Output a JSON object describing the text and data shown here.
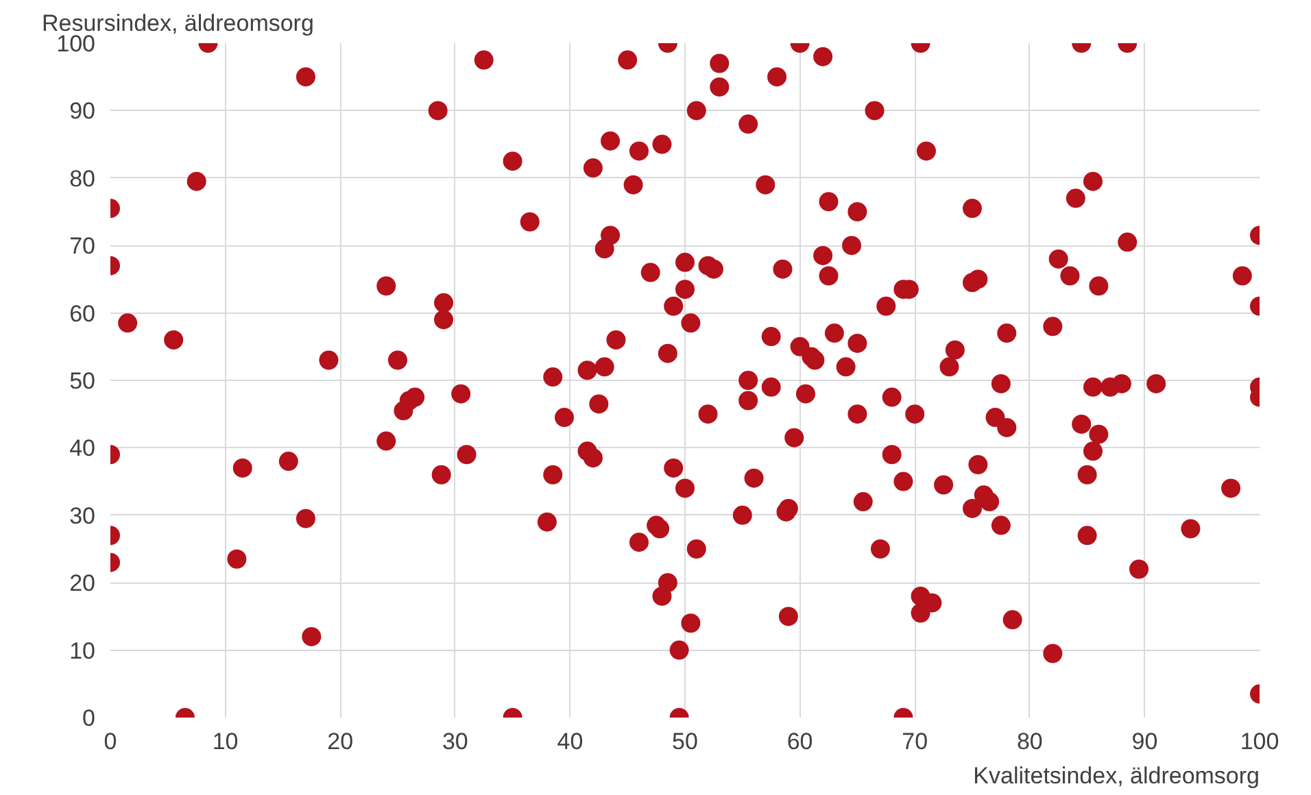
{
  "chart_data": {
    "type": "scatter",
    "xlabel": "Kvalitetsindex, äldreomsorg",
    "ylabel": "Resursindex, äldreomsorg",
    "xlim": [
      0,
      100
    ],
    "ylim": [
      0,
      100
    ],
    "xticks": [
      0,
      10,
      20,
      30,
      40,
      50,
      60,
      70,
      80,
      90,
      100
    ],
    "yticks": [
      0,
      10,
      20,
      30,
      40,
      50,
      60,
      70,
      80,
      90,
      100
    ],
    "grid": true,
    "marker": "circle",
    "series": [
      {
        "color": "#b5121b",
        "x": [
          0,
          0,
          0,
          0,
          0,
          1.5,
          5.5,
          6.5,
          7.5,
          8.5,
          11.5,
          11,
          15.5,
          17,
          17,
          17.5,
          19,
          24,
          24,
          25,
          25.5,
          26,
          26.5,
          28.5,
          29,
          29,
          28.8,
          30.5,
          31,
          32.5,
          35,
          35,
          36.5,
          38,
          38.5,
          38.5,
          39.5,
          41.5,
          41.5,
          42,
          42,
          42.5,
          43,
          43,
          43.5,
          43.5,
          44,
          45,
          45.5,
          46,
          46,
          47,
          47.5,
          47.8,
          48,
          48,
          48.5,
          48.5,
          48.5,
          49,
          49,
          49.5,
          49.5,
          50,
          50,
          50,
          50.5,
          50.5,
          51,
          51,
          52,
          52,
          52.5,
          53,
          53,
          55,
          55.5,
          55.5,
          55.5,
          56,
          57,
          57.5,
          57.5,
          58,
          58.5,
          59,
          58.8,
          59,
          59.5,
          60,
          60,
          60.5,
          61,
          61.3,
          62,
          62,
          62.5,
          62.5,
          63,
          64,
          64.5,
          65,
          65,
          65,
          65.5,
          66.5,
          67,
          67.5,
          68,
          68,
          69,
          69,
          69,
          69.5,
          70,
          70.5,
          70.5,
          70.5,
          71,
          71.5,
          72.5,
          73,
          73.5,
          75,
          75,
          75,
          75.5,
          75.5,
          76,
          76.5,
          77,
          77.5,
          77.5,
          78,
          78,
          78.5,
          82,
          82,
          82.5,
          83.5,
          84,
          84.5,
          84.5,
          85,
          85,
          85.5,
          85.5,
          85.5,
          86,
          86,
          87,
          88,
          88.5,
          88.5,
          89.5,
          91,
          94,
          97.5,
          98.5,
          100,
          100,
          100,
          100,
          100
        ],
        "values": [
          75.5,
          67,
          39,
          27,
          23,
          58.5,
          56,
          0,
          79.5,
          100,
          37,
          23.5,
          38,
          95,
          29.5,
          12,
          53,
          64,
          41,
          53,
          45.5,
          47,
          47.5,
          90,
          61.5,
          59,
          36,
          48,
          39,
          97.5,
          82.5,
          0,
          73.5,
          29,
          50.5,
          36,
          44.5,
          51.5,
          39.5,
          38.5,
          81.5,
          46.5,
          69.5,
          52,
          71.5,
          85.5,
          56,
          97.5,
          79,
          84,
          26,
          66,
          28.5,
          28,
          18,
          85,
          100,
          20,
          54,
          61,
          37,
          10,
          0,
          34,
          63.5,
          67.5,
          58.5,
          14,
          90,
          25,
          45,
          67,
          66.5,
          97,
          93.5,
          30,
          88,
          50,
          47,
          35.5,
          79,
          49,
          56.5,
          95,
          66.5,
          31,
          30.5,
          15,
          41.5,
          100,
          55,
          48,
          53.5,
          53,
          98,
          68.5,
          76.5,
          65.5,
          57,
          52,
          70,
          75,
          45,
          55.5,
          32,
          90,
          25,
          61,
          39,
          47.5,
          63.5,
          35,
          0,
          63.5,
          45,
          18,
          15.5,
          100,
          84,
          17,
          34.5,
          52,
          54.5,
          31,
          75.5,
          64.5,
          37.5,
          65,
          33,
          32,
          44.5,
          28.5,
          49.5,
          43,
          57,
          14.5,
          58,
          9.5,
          68,
          65.5,
          77,
          100,
          43.5,
          27,
          36,
          49,
          39.5,
          79.5,
          42,
          64,
          49,
          49.5,
          70.5,
          100,
          22,
          49.5,
          28,
          34,
          65.5,
          71.5,
          61,
          49,
          47.5,
          3.5
        ]
      }
    ]
  }
}
